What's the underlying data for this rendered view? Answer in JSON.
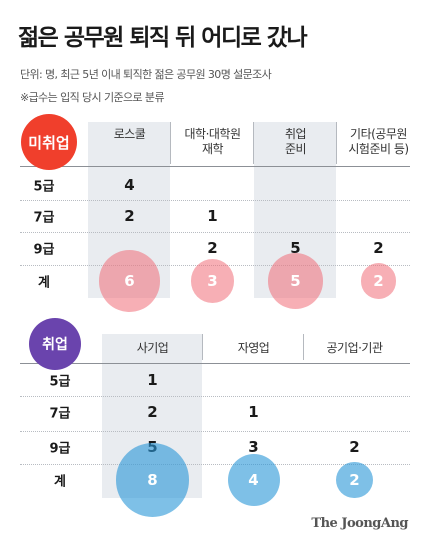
{
  "title": "젊은 공무원 퇴직 뒤 어디로 갔나",
  "notes": [
    "단위: 명, 최근 5년 이내 퇴직한 젊은 공무원 30명 설문조사",
    "※급수는 입직 당시 기준으로 분류"
  ],
  "colors": {
    "unemployed_badge": "#f03f2c",
    "employed_badge": "#6a44ad",
    "unemployed_bubble": "#f06e78",
    "employed_bubble": "#2896d7",
    "stripe": "#e9ecf0"
  },
  "chart_data": [
    {
      "type": "table",
      "group": "미취업",
      "columns": [
        "로스쿨",
        "대학·대학원\n재학",
        "취업\n준비",
        "기타(공무원\n시험준비 등)"
      ],
      "rows": [
        {
          "label": "5급",
          "values": [
            "4",
            "",
            "",
            ""
          ]
        },
        {
          "label": "7급",
          "values": [
            "2",
            "1",
            "",
            ""
          ]
        },
        {
          "label": "9급",
          "values": [
            "",
            "2",
            "5",
            "2"
          ]
        }
      ],
      "total_label": "계",
      "totals": [
        6,
        3,
        5,
        2
      ]
    },
    {
      "type": "table",
      "group": "취업",
      "columns": [
        "사기업",
        "자영업",
        "공기업·기관"
      ],
      "rows": [
        {
          "label": "5급",
          "values": [
            "1",
            "",
            ""
          ]
        },
        {
          "label": "7급",
          "values": [
            "2",
            "1",
            ""
          ]
        },
        {
          "label": "9급",
          "values": [
            "5",
            "3",
            "2"
          ]
        }
      ],
      "total_label": "계",
      "totals": [
        8,
        4,
        2
      ]
    }
  ],
  "credit": "The JoongAng"
}
